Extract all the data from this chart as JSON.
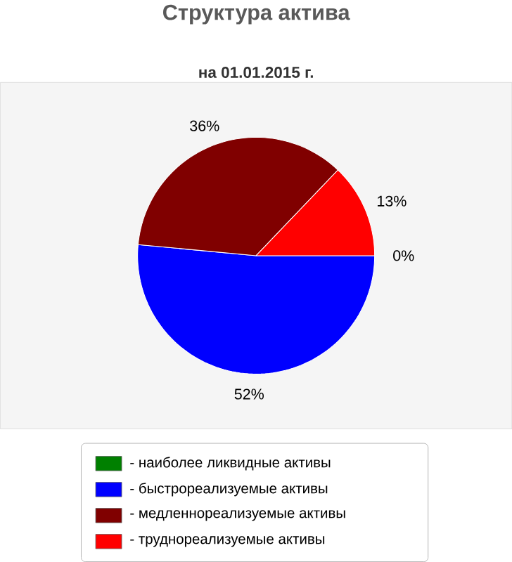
{
  "chart_data": {
    "type": "pie",
    "title": "Структура актива",
    "subtitle": "на 01.01.2015 г.",
    "categories": [
      "- наиболее ликвидные активы",
      "- быстрореализуемые активы",
      "- медленнореализуемые активы",
      "- труднореализуемые активы"
    ],
    "values": [
      0,
      52,
      36,
      13
    ],
    "value_labels": [
      "0%",
      "52%",
      "36%",
      "13%"
    ],
    "colors": [
      "#008000",
      "#0000ff",
      "#800000",
      "#ff0000"
    ],
    "legend": "bottom"
  }
}
